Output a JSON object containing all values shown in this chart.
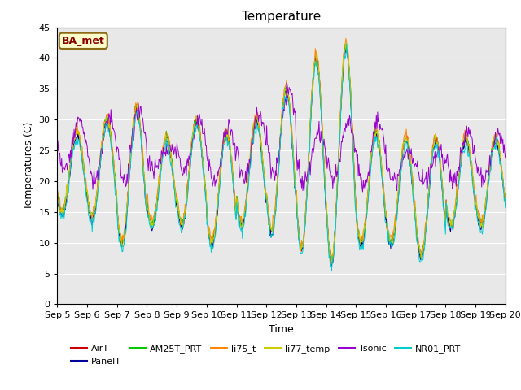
{
  "title": "Temperature",
  "xlabel": "Time",
  "ylabel": "Temperatures (C)",
  "ylim": [
    0,
    45
  ],
  "yticks": [
    0,
    5,
    10,
    15,
    20,
    25,
    30,
    35,
    40,
    45
  ],
  "annotation_text": "BA_met",
  "annotation_facecolor": "#ffffcc",
  "annotation_edgecolor": "#8B6914",
  "annotation_textcolor": "#8B0000",
  "background_color": "#ffffff",
  "plot_bg_color": "#e8e8e8",
  "legend_entries": [
    "AirT",
    "PanelT",
    "AM25T_PRT",
    "li75_t",
    "li77_temp",
    "Tsonic",
    "NR01_PRT"
  ],
  "legend_colors": [
    "#cc0000",
    "#000099",
    "#00cc00",
    "#ff8800",
    "#cccc00",
    "#9900cc",
    "#00cccc"
  ],
  "title_fontsize": 11,
  "label_fontsize": 9,
  "tick_fontsize": 8,
  "legend_fontsize": 8,
  "day_maxes": [
    28,
    30,
    32,
    27,
    30,
    28,
    30,
    35,
    40,
    42,
    28,
    27,
    27,
    27,
    27
  ],
  "day_mins": [
    15,
    14,
    10,
    13,
    13,
    10,
    13,
    12,
    9,
    7,
    10,
    10,
    8,
    13,
    13
  ],
  "tsonic_day_maxes": [
    30,
    30,
    32,
    26,
    30,
    29,
    31,
    35,
    28,
    30,
    30,
    25,
    25,
    28,
    28
  ],
  "tsonic_day_mins": [
    22,
    20,
    20,
    22,
    22,
    20,
    20,
    21,
    20,
    20,
    19,
    20,
    20,
    20,
    20
  ]
}
